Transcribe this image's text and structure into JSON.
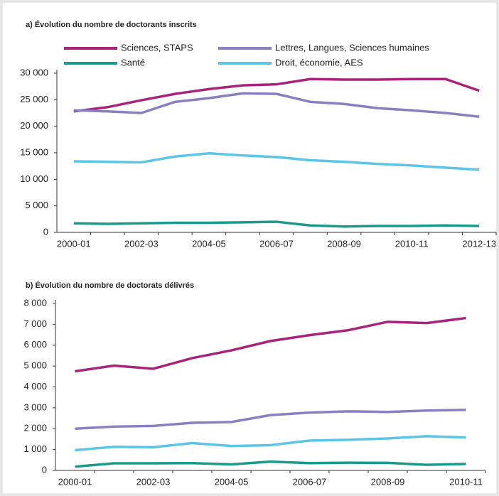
{
  "chart_data": [
    {
      "type": "line",
      "title": "a) Évolution du nombre de doctorants inscrits",
      "categories": [
        "2000-01",
        null,
        "2002-03",
        null,
        "2004-05",
        null,
        "2006-07",
        null,
        "2008-09",
        null,
        "2010-11",
        null,
        "2012-13"
      ],
      "series": [
        {
          "name": "Sciences, STAPS",
          "color": "#a8247a",
          "values": [
            22800,
            23600,
            24900,
            26100,
            27000,
            27700,
            27900,
            28900,
            28800,
            28800,
            28900,
            28900,
            26700
          ]
        },
        {
          "name": "Lettres, Langues, Sciences humaines",
          "color": "#8a7fbf",
          "values": [
            23000,
            22800,
            22500,
            24600,
            25300,
            26200,
            26100,
            24600,
            24200,
            23400,
            23000,
            22500,
            21800
          ]
        },
        {
          "name": "Santé",
          "color": "#1a9a8a",
          "values": [
            1700,
            1600,
            1700,
            1800,
            1800,
            1900,
            2000,
            1300,
            1100,
            1200,
            1200,
            1300,
            1200
          ]
        },
        {
          "name": "Droit, économie, AES",
          "color": "#5bc5e8",
          "values": [
            13400,
            13300,
            13200,
            14300,
            14900,
            14500,
            14200,
            13600,
            13300,
            12900,
            12600,
            12200,
            11800
          ]
        }
      ],
      "ylim": [
        0,
        30000
      ],
      "yticks": [
        0,
        {
          "value": 5000,
          "label": "5 000"
        },
        {
          "value": 10000,
          "label": "10 000"
        },
        {
          "value": 15000,
          "label": "15 000"
        },
        {
          "value": 20000,
          "label": "20 000"
        },
        {
          "value": 25000,
          "label": "25 000"
        },
        {
          "value": 30000,
          "label": "30 000"
        }
      ]
    },
    {
      "type": "line",
      "title": "b) Évolution du nombre de doctorats délivrés",
      "categories": [
        "2000-01",
        null,
        "2002-03",
        null,
        "2004-05",
        null,
        "2006-07",
        null,
        "2008-09",
        null,
        "2010-11"
      ],
      "series": [
        {
          "color": "#a8247a",
          "values": [
            4750,
            5020,
            4870,
            5380,
            5750,
            6200,
            6480,
            6720,
            7120,
            7060,
            7300
          ]
        },
        {
          "color": "#8a7fbf",
          "values": [
            2000,
            2100,
            2130,
            2280,
            2320,
            2650,
            2770,
            2830,
            2800,
            2870,
            2900
          ]
        },
        {
          "color": "#1a9a8a",
          "values": [
            180,
            340,
            340,
            350,
            290,
            420,
            350,
            370,
            360,
            270,
            310
          ]
        },
        {
          "color": "#5bc5e8",
          "values": [
            970,
            1130,
            1110,
            1310,
            1170,
            1210,
            1430,
            1470,
            1530,
            1640,
            1580
          ]
        }
      ],
      "ylim": [
        0,
        8000
      ],
      "yticks": [
        0,
        {
          "value": 1000,
          "label": "1 000"
        },
        {
          "value": 2000,
          "label": "2 000"
        },
        {
          "value": 3000,
          "label": "3 000"
        },
        {
          "value": 4000,
          "label": "4 000"
        },
        {
          "value": 5000,
          "label": "5 000"
        },
        {
          "value": 6000,
          "label": "6 000"
        },
        {
          "value": 7000,
          "label": "7 000"
        },
        {
          "value": 8000,
          "label": "8 000"
        }
      ]
    }
  ]
}
